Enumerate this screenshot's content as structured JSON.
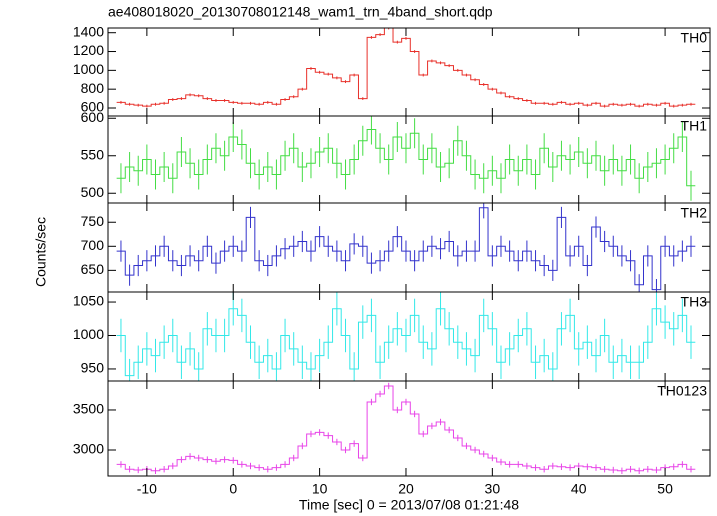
{
  "chart_data": {
    "type": "step",
    "title": "ae408018020_20130708012148_wam1_trn_4band_short.qdp",
    "x_label": "Time [sec] 0 = 2013/07/08 01:21:48",
    "y_label": "Counts/sec",
    "xlim": [
      -14.5,
      55.2
    ],
    "xticks": [
      -10,
      0,
      10,
      20,
      30,
      40,
      50
    ],
    "x": [
      -13,
      -12,
      -11,
      -10,
      -9,
      -8,
      -7,
      -6,
      -5,
      -4,
      -3,
      -2,
      -1,
      0,
      1,
      2,
      3,
      4,
      5,
      6,
      7,
      8,
      9,
      10,
      11,
      12,
      13,
      14,
      15,
      16,
      17,
      18,
      19,
      20,
      21,
      22,
      23,
      24,
      25,
      26,
      27,
      28,
      29,
      30,
      31,
      32,
      33,
      34,
      35,
      36,
      37,
      38,
      39,
      40,
      41,
      42,
      43,
      44,
      45,
      46,
      47,
      48,
      49,
      50,
      51,
      52,
      53
    ],
    "panels": [
      {
        "name": "TH0",
        "color": "#e8302a",
        "error": 15,
        "ylim": [
          515,
          1450
        ],
        "yticks": [
          600,
          800,
          1000,
          1200,
          1400
        ],
        "values": [
          660,
          640,
          630,
          620,
          640,
          650,
          690,
          700,
          740,
          730,
          700,
          680,
          680,
          660,
          650,
          650,
          640,
          660,
          640,
          690,
          720,
          800,
          1020,
          980,
          960,
          920,
          880,
          950,
          700,
          1350,
          1380,
          1450,
          1300,
          1340,
          1200,
          950,
          1100,
          1080,
          1050,
          1000,
          950,
          900,
          850,
          800,
          760,
          720,
          700,
          680,
          650,
          650,
          640,
          660,
          640,
          650,
          630,
          650,
          620,
          640,
          630,
          640,
          620,
          640,
          630,
          650,
          620,
          630,
          640
        ]
      },
      {
        "name": "TH1",
        "color": "#44dd44",
        "error": 20,
        "ylim": [
          487,
          603
        ],
        "yticks": [
          500,
          550,
          600
        ],
        "values": [
          520,
          535,
          530,
          545,
          525,
          535,
          520,
          555,
          540,
          525,
          545,
          560,
          550,
          575,
          565,
          540,
          525,
          535,
          525,
          550,
          560,
          535,
          540,
          555,
          560,
          540,
          525,
          545,
          570,
          585,
          560,
          545,
          575,
          560,
          580,
          545,
          560,
          535,
          540,
          570,
          550,
          525,
          520,
          530,
          520,
          545,
          530,
          545,
          525,
          560,
          535,
          550,
          545,
          555,
          540,
          550,
          530,
          545,
          530,
          545,
          520,
          535,
          540,
          545,
          560,
          575,
          510
        ]
      },
      {
        "name": "TH2",
        "color": "#3333cc",
        "error": 22,
        "ylim": [
          605,
          790
        ],
        "yticks": [
          650,
          700,
          750
        ],
        "values": [
          690,
          640,
          660,
          670,
          680,
          700,
          670,
          660,
          680,
          670,
          700,
          665,
          690,
          700,
          690,
          760,
          670,
          660,
          680,
          695,
          700,
          710,
          690,
          720,
          700,
          690,
          670,
          705,
          700,
          665,
          670,
          690,
          720,
          690,
          670,
          690,
          700,
          695,
          710,
          680,
          690,
          690,
          780,
          680,
          700,
          690,
          670,
          690,
          670,
          660,
          650,
          760,
          680,
          700,
          660,
          740,
          710,
          700,
          680,
          670,
          620,
          680,
          610,
          700,
          680,
          690,
          700
        ]
      },
      {
        "name": "TH3",
        "color": "#33e8e8",
        "error": 25,
        "ylim": [
          932,
          1065
        ],
        "yticks": [
          950,
          1000,
          1050
        ],
        "values": [
          1000,
          940,
          960,
          980,
          970,
          990,
          1000,
          960,
          980,
          950,
          1010,
          1000,
          1000,
          1040,
          1030,
          990,
          960,
          970,
          950,
          1000,
          980,
          960,
          950,
          970,
          990,
          1040,
          1000,
          950,
          1020,
          1030,
          960,
          990,
          1010,
          1000,
          1030,
          990,
          980,
          1040,
          1010,
          990,
          980,
          970,
          1030,
          1010,
          960,
          980,
          1000,
          1010,
          960,
          970,
          950,
          1010,
          1030,
          980,
          990,
          970,
          1000,
          960,
          970,
          960,
          960,
          990,
          1040,
          1020,
          1010,
          1030,
          990
        ]
      },
      {
        "name": "TH0123",
        "color": "#e844e8",
        "error": 40,
        "ylim": [
          2675,
          3862
        ],
        "yticks": [
          3000,
          3500
        ],
        "values": [
          2820,
          2760,
          2750,
          2760,
          2740,
          2760,
          2800,
          2880,
          2920,
          2900,
          2880,
          2860,
          2880,
          2870,
          2820,
          2800,
          2780,
          2760,
          2780,
          2820,
          2900,
          3050,
          3200,
          3220,
          3180,
          3100,
          3000,
          3080,
          2900,
          3600,
          3700,
          3800,
          3500,
          3600,
          3450,
          3200,
          3300,
          3350,
          3250,
          3150,
          3050,
          3000,
          2950,
          2900,
          2850,
          2820,
          2820,
          2800,
          2780,
          2760,
          2800,
          2790,
          2780,
          2800,
          2790,
          2780,
          2760,
          2750,
          2740,
          2760,
          2740,
          2760,
          2750,
          2780,
          2790,
          2820,
          2760
        ]
      }
    ]
  }
}
